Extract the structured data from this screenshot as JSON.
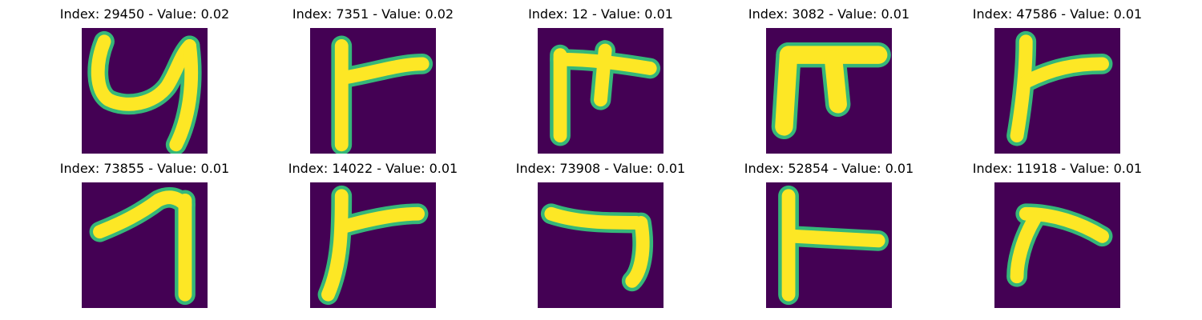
{
  "figure": {
    "colors": {
      "background": "#440154",
      "stroke": "#fde725",
      "edge": "#35b779"
    },
    "panels": [
      {
        "title": "Index: 29450 - Value: 0.02",
        "glyph": "loop-hook"
      },
      {
        "title": "Index: 7351 - Value: 0.02",
        "glyph": "vertical-with-right-arm"
      },
      {
        "title": "Index: 12 - Value: 0.01",
        "glyph": "gate"
      },
      {
        "title": "Index: 3082 - Value: 0.01",
        "glyph": "thick-gate"
      },
      {
        "title": "Index: 47586 - Value: 0.01",
        "glyph": "vertical-with-right-arm"
      },
      {
        "title": "Index: 73855 - Value: 0.01",
        "glyph": "seven"
      },
      {
        "title": "Index: 14022 - Value: 0.01",
        "glyph": "vertical-with-right-arm"
      },
      {
        "title": "Index: 73908 - Value: 0.01",
        "glyph": "seven-flat"
      },
      {
        "title": "Index: 52854 - Value: 0.01",
        "glyph": "vertical-with-middle-arm"
      },
      {
        "title": "Index: 11918 - Value: 0.01",
        "glyph": "curved-corner"
      }
    ]
  }
}
